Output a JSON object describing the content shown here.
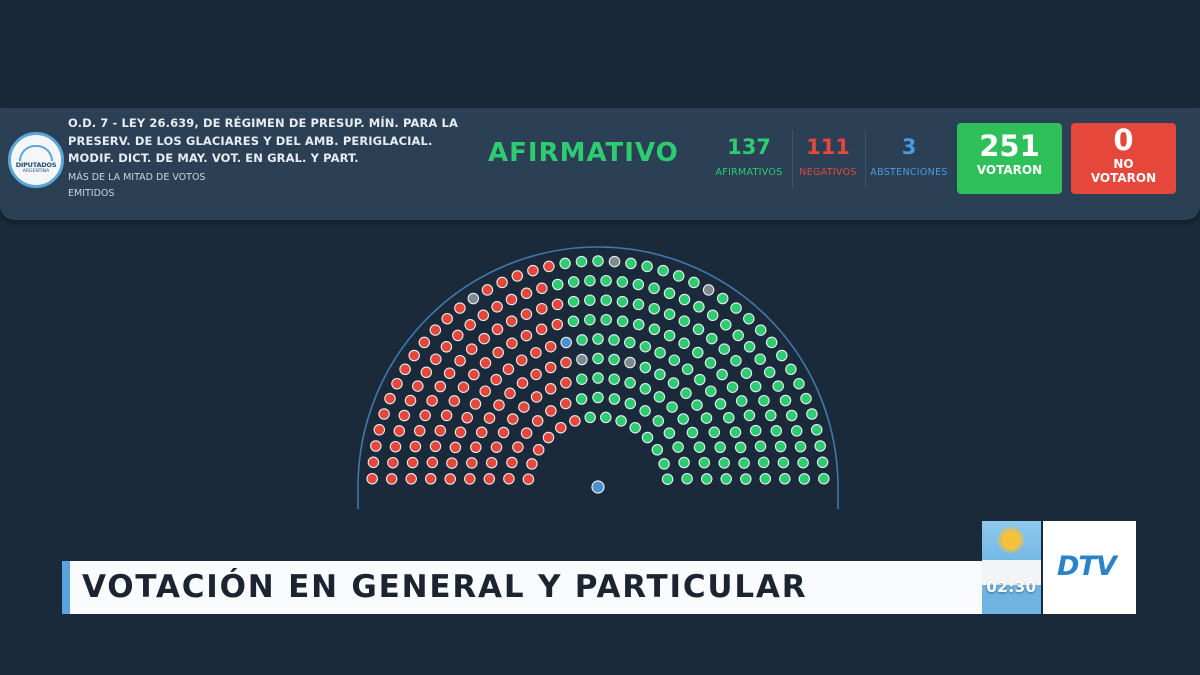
{
  "header": {
    "logo_line1": "DIPUTADOS",
    "logo_line2": "ARGENTINA",
    "law_title": "O.D. 7 - LEY 26.639, DE RÉGIMEN DE PRESUP. MÍN. PARA LA PRESERV. DE LOS GLACIARES Y DEL AMB. PERIGLACIAL. MODIF. DICT. DE MAY. VOT. EN GRAL. Y PART.",
    "majority_rule": "MÁS DE LA MITAD DE VOTOS EMITIDOS",
    "result": "AFIRMATIVO",
    "afirmativos": {
      "value": "137",
      "label": "AFIRMATIVOS"
    },
    "negativos": {
      "value": "111",
      "label": "NEGATIVOS"
    },
    "abstenciones": {
      "value": "3",
      "label": "ABSTENCIONES"
    },
    "votaron": {
      "value": "251",
      "label": "VOTARON"
    },
    "no_votaron": {
      "value": "0",
      "label": "NO VOTARON"
    }
  },
  "colors": {
    "afirmativo": "#2ecc71",
    "negativo": "#e5473b",
    "abstencion": "#4b90d0",
    "ausente": "#808890"
  },
  "chamber": {
    "seats": 257,
    "rows": 9
  },
  "banner": {
    "text": "VOTACIÓN EN GENERAL Y PARTICULAR"
  },
  "clock": "02:30",
  "channel_logo": "DTV"
}
